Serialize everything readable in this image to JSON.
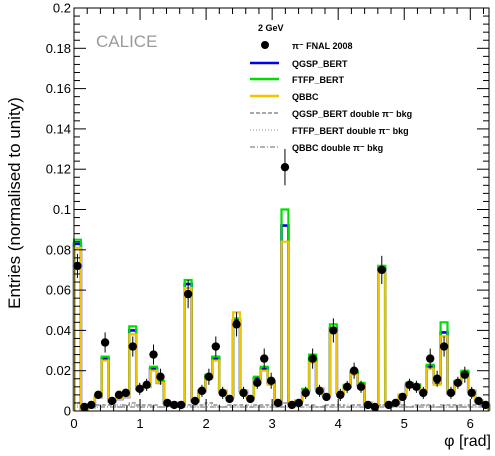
{
  "chart_data": {
    "type": "line",
    "watermark": "CALICE",
    "legend_header": "2 GeV",
    "xlabel": "φ [rad]",
    "ylabel": "Entries (normalised to unity)",
    "xlim": [
      0,
      6.2832
    ],
    "ylim": [
      0,
      0.2
    ],
    "grid": false,
    "legend_position": "top-right",
    "x_ticks": [
      0,
      1,
      2,
      3,
      4,
      5,
      6
    ],
    "x_tick_labels": [
      "0",
      "1",
      "2",
      "3",
      "4",
      "5",
      "6"
    ],
    "y_ticks": [
      0,
      0.02,
      0.04,
      0.06,
      0.08,
      0.1,
      0.12,
      0.14,
      0.16,
      0.18,
      0.2
    ],
    "y_tick_labels": [
      "0",
      "0.02",
      "0.04",
      "0.06",
      "0.08",
      "0.1",
      "0.12",
      "0.14",
      "0.16",
      "0.18",
      "0.2"
    ],
    "bin_width": 0.1047,
    "x": [
      0.052,
      0.157,
      0.262,
      0.367,
      0.471,
      0.576,
      0.681,
      0.785,
      0.89,
      0.995,
      1.1,
      1.204,
      1.309,
      1.414,
      1.518,
      1.623,
      1.728,
      1.833,
      1.937,
      2.042,
      2.147,
      2.251,
      2.356,
      2.461,
      2.566,
      2.67,
      2.775,
      2.88,
      2.985,
      3.089,
      3.194,
      3.299,
      3.403,
      3.508,
      3.613,
      3.718,
      3.822,
      3.927,
      4.032,
      4.136,
      4.241,
      4.346,
      4.451,
      4.555,
      4.66,
      4.765,
      4.869,
      4.974,
      5.079,
      5.184,
      5.288,
      5.393,
      5.498,
      5.603,
      5.707,
      5.812,
      5.917,
      6.021,
      6.126,
      6.231
    ],
    "series": [
      {
        "name": "π⁻ FNAL 2008",
        "style": "markers",
        "color": "#000000",
        "values": [
          0.072,
          0.002,
          0.003,
          0.008,
          0.034,
          0.005,
          0.008,
          0.009,
          0.032,
          0.011,
          0.013,
          0.028,
          0.017,
          0.004,
          0.003,
          0.003,
          0.058,
          0.005,
          0.01,
          0.017,
          0.032,
          0.009,
          0.006,
          0.043,
          0.009,
          0.006,
          0.014,
          0.026,
          0.015,
          0.004,
          0.121,
          0.003,
          0.004,
          0.009,
          0.026,
          0.01,
          0.007,
          0.04,
          0.008,
          0.012,
          0.02,
          0.012,
          0.003,
          0.002,
          0.07,
          0.003,
          0.004,
          0.007,
          0.013,
          0.012,
          0.009,
          0.026,
          0.016,
          0.032,
          0.009,
          0.014,
          0.018,
          0.009,
          0.005,
          0.003
        ],
        "errors": [
          0.006,
          0.001,
          0.001,
          0.002,
          0.005,
          0.002,
          0.002,
          0.002,
          0.005,
          0.003,
          0.003,
          0.005,
          0.004,
          0.002,
          0.001,
          0.001,
          0.007,
          0.002,
          0.003,
          0.004,
          0.005,
          0.003,
          0.002,
          0.006,
          0.003,
          0.002,
          0.003,
          0.005,
          0.004,
          0.002,
          0.009,
          0.001,
          0.002,
          0.003,
          0.005,
          0.003,
          0.002,
          0.006,
          0.003,
          0.003,
          0.004,
          0.003,
          0.001,
          0.001,
          0.007,
          0.001,
          0.002,
          0.002,
          0.003,
          0.003,
          0.003,
          0.005,
          0.004,
          0.005,
          0.003,
          0.003,
          0.004,
          0.003,
          0.002,
          0.001
        ]
      },
      {
        "name": "QGSP_BERT",
        "style": "step",
        "color": "#0000ee",
        "values": [
          0.083,
          0.001,
          0.002,
          0.007,
          0.026,
          0.005,
          0.006,
          0.007,
          0.04,
          0.011,
          0.012,
          0.021,
          0.014,
          0.004,
          0.003,
          0.004,
          0.063,
          0.005,
          0.01,
          0.017,
          0.026,
          0.01,
          0.007,
          0.045,
          0.01,
          0.007,
          0.016,
          0.021,
          0.014,
          0.004,
          0.092,
          0.004,
          0.005,
          0.01,
          0.026,
          0.011,
          0.008,
          0.041,
          0.009,
          0.012,
          0.019,
          0.013,
          0.004,
          0.003,
          0.071,
          0.003,
          0.004,
          0.008,
          0.013,
          0.013,
          0.01,
          0.022,
          0.014,
          0.039,
          0.009,
          0.014,
          0.019,
          0.01,
          0.005,
          0.003
        ]
      },
      {
        "name": "FTFP_BERT",
        "style": "step",
        "color": "#00dd00",
        "values": [
          0.085,
          0.001,
          0.002,
          0.007,
          0.027,
          0.005,
          0.006,
          0.007,
          0.042,
          0.011,
          0.012,
          0.022,
          0.015,
          0.004,
          0.003,
          0.004,
          0.065,
          0.005,
          0.01,
          0.018,
          0.027,
          0.01,
          0.007,
          0.046,
          0.01,
          0.007,
          0.017,
          0.022,
          0.015,
          0.004,
          0.1,
          0.004,
          0.005,
          0.011,
          0.028,
          0.011,
          0.008,
          0.043,
          0.009,
          0.013,
          0.02,
          0.014,
          0.004,
          0.003,
          0.072,
          0.003,
          0.004,
          0.008,
          0.014,
          0.013,
          0.01,
          0.023,
          0.015,
          0.044,
          0.009,
          0.015,
          0.02,
          0.01,
          0.005,
          0.003
        ]
      },
      {
        "name": "QBBC",
        "style": "step",
        "color": "#f2c400",
        "values": [
          0.081,
          0.001,
          0.002,
          0.007,
          0.025,
          0.005,
          0.006,
          0.007,
          0.038,
          0.011,
          0.012,
          0.02,
          0.014,
          0.004,
          0.003,
          0.004,
          0.061,
          0.005,
          0.01,
          0.016,
          0.025,
          0.01,
          0.007,
          0.049,
          0.01,
          0.007,
          0.015,
          0.02,
          0.013,
          0.004,
          0.084,
          0.004,
          0.005,
          0.01,
          0.024,
          0.011,
          0.008,
          0.04,
          0.009,
          0.012,
          0.018,
          0.013,
          0.004,
          0.003,
          0.069,
          0.003,
          0.004,
          0.008,
          0.013,
          0.012,
          0.01,
          0.021,
          0.013,
          0.037,
          0.009,
          0.014,
          0.018,
          0.01,
          0.005,
          0.003
        ]
      },
      {
        "name": "QGSP_BERT double π⁻ bkg",
        "style": "dashed",
        "color": "#8c8c8c",
        "values": [
          0.004,
          0.002,
          0.003,
          0.003,
          0.003,
          0.003,
          0.002,
          0.003,
          0.004,
          0.003,
          0.003,
          0.003,
          0.002,
          0.003,
          0.003,
          0.002,
          0.003,
          0.003,
          0.003,
          0.004,
          0.003,
          0.002,
          0.003,
          0.003,
          0.003,
          0.002,
          0.003,
          0.003,
          0.003,
          0.002,
          0.004,
          0.003,
          0.003,
          0.003,
          0.003,
          0.002,
          0.003,
          0.003,
          0.003,
          0.002,
          0.003,
          0.003,
          0.003,
          0.002,
          0.003,
          0.003,
          0.003,
          0.003,
          0.002,
          0.003,
          0.003,
          0.003,
          0.002,
          0.003,
          0.003,
          0.003,
          0.002,
          0.003,
          0.003,
          0.003
        ]
      },
      {
        "name": "FTFP_BERT double π⁻ bkg",
        "style": "dotted",
        "color": "#b0b0b0",
        "values": [
          0.003,
          0.002,
          0.002,
          0.003,
          0.002,
          0.002,
          0.003,
          0.002,
          0.003,
          0.002,
          0.002,
          0.003,
          0.002,
          0.002,
          0.003,
          0.002,
          0.003,
          0.002,
          0.002,
          0.003,
          0.002,
          0.002,
          0.003,
          0.002,
          0.002,
          0.003,
          0.002,
          0.002,
          0.003,
          0.002,
          0.003,
          0.002,
          0.002,
          0.003,
          0.002,
          0.002,
          0.003,
          0.002,
          0.002,
          0.003,
          0.002,
          0.002,
          0.003,
          0.002,
          0.003,
          0.002,
          0.002,
          0.003,
          0.002,
          0.002,
          0.003,
          0.002,
          0.002,
          0.003,
          0.002,
          0.002,
          0.003,
          0.002,
          0.002,
          0.003
        ]
      },
      {
        "name": "QBBC double π⁻ bkg",
        "style": "dashdot",
        "color": "#9a9a9a",
        "values": [
          0.002,
          0.002,
          0.002,
          0.002,
          0.002,
          0.002,
          0.002,
          0.002,
          0.002,
          0.002,
          0.002,
          0.002,
          0.002,
          0.002,
          0.002,
          0.002,
          0.002,
          0.002,
          0.002,
          0.002,
          0.002,
          0.002,
          0.002,
          0.002,
          0.002,
          0.002,
          0.002,
          0.002,
          0.002,
          0.002,
          0.002,
          0.002,
          0.002,
          0.002,
          0.002,
          0.002,
          0.002,
          0.002,
          0.002,
          0.002,
          0.002,
          0.002,
          0.002,
          0.002,
          0.002,
          0.002,
          0.002,
          0.002,
          0.002,
          0.002,
          0.002,
          0.002,
          0.002,
          0.002,
          0.002,
          0.002,
          0.002,
          0.002,
          0.002,
          0.002
        ]
      }
    ]
  }
}
